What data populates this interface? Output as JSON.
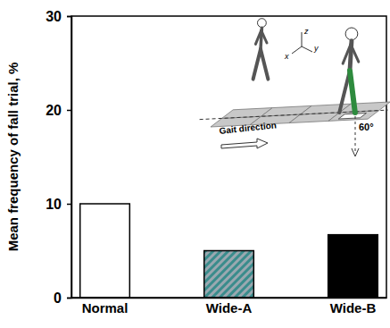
{
  "chart_data": {
    "type": "bar",
    "y_label": "Mean frequency of fall trial, %",
    "categories": [
      "Normal",
      "Wide-A",
      "Wide-B"
    ],
    "values": [
      10,
      5,
      6.7
    ],
    "colors": [
      "#ffffff",
      "#3a8c8c",
      "#000000"
    ],
    "ylim": [
      0,
      30
    ],
    "yticks": [
      0,
      10,
      20,
      30
    ],
    "annotations": [
      "Gait direction",
      "60°",
      "x",
      "y",
      "z"
    ]
  }
}
